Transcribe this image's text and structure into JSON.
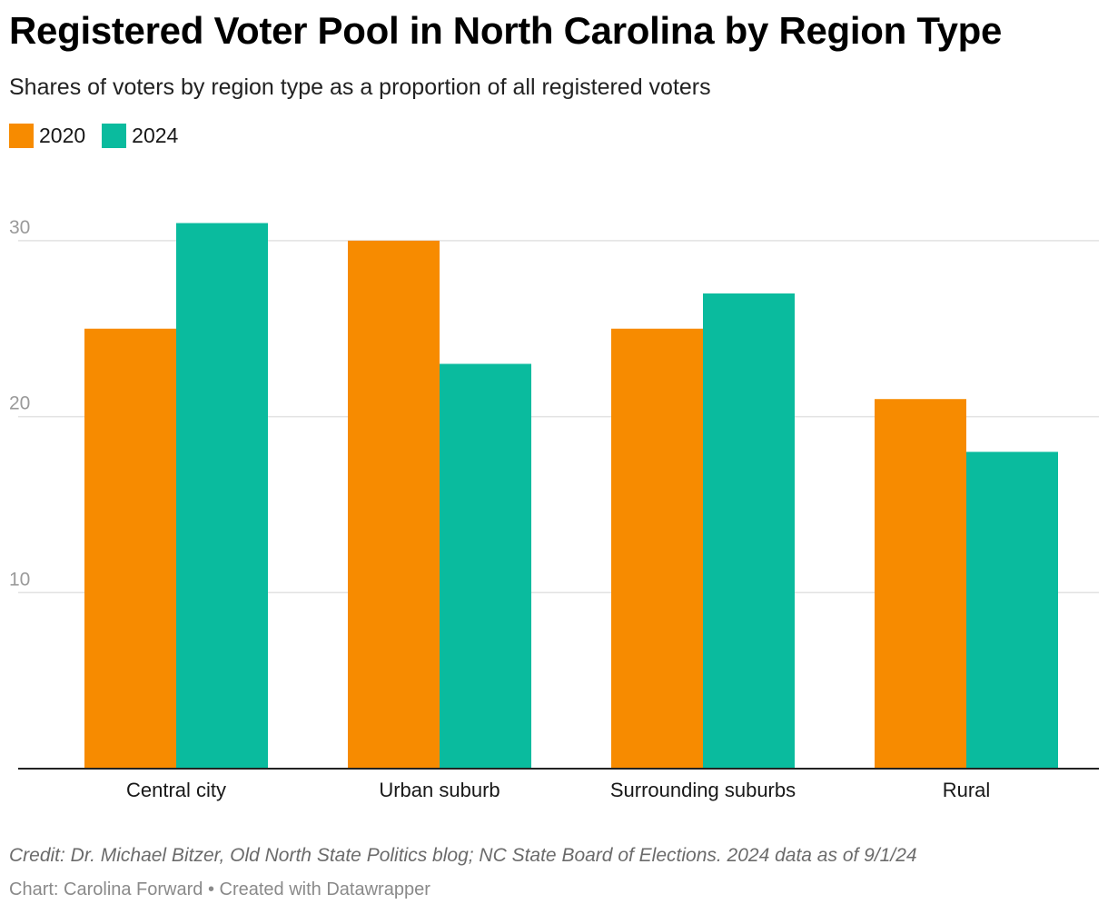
{
  "header": {
    "title": "Registered Voter Pool in North Carolina by Region Type",
    "subtitle": "Shares of voters by region type as a proportion of all registered voters"
  },
  "legend": [
    {
      "label": "2020",
      "color": "#f78b00"
    },
    {
      "label": "2024",
      "color": "#0abb9e"
    }
  ],
  "chart_data": {
    "type": "bar",
    "title": "Registered Voter Pool in North Carolina by Region Type",
    "subtitle": "Shares of voters by region type as a proportion of all registered voters",
    "categories": [
      "Central city",
      "Urban suburb",
      "Surrounding suburbs",
      "Rural"
    ],
    "series": [
      {
        "name": "2020",
        "color": "#f78b00",
        "values": [
          25,
          30,
          25,
          21
        ]
      },
      {
        "name": "2024",
        "color": "#0abb9e",
        "values": [
          31,
          23,
          27,
          18
        ]
      }
    ],
    "yticks": [
      10,
      20,
      30
    ],
    "ylim": [
      0,
      30
    ],
    "xlabel": "",
    "ylabel": "",
    "grid": true,
    "legend_position": "top-left"
  },
  "footer": {
    "credit": "Credit: Dr. Michael Bitzer, Old North State Politics blog; NC State Board of Elections. 2024 data as of 9/1/24",
    "byline": "Chart: Carolina Forward • Created with Datawrapper"
  }
}
